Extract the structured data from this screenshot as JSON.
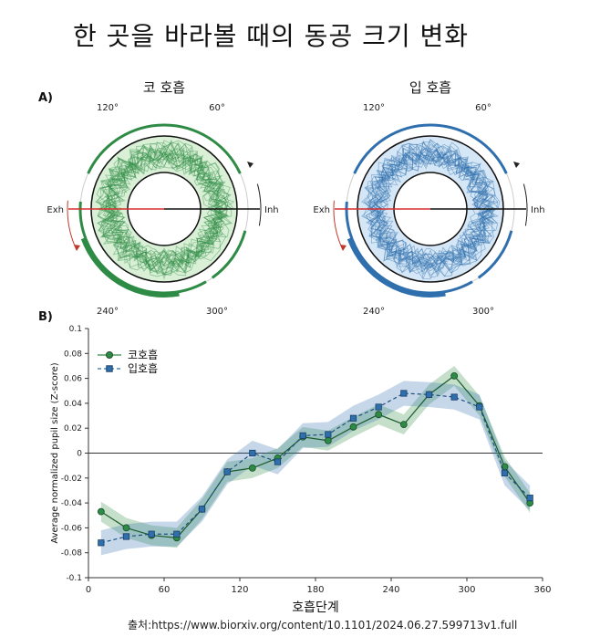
{
  "title": "한 곳을 바라볼 때의 동공 크기 변화",
  "panel_a_label": "A)",
  "panel_b_label": "B)",
  "source": "출처:https://www.biorxiv.org/content/10.1101/2024.06.27.599713v1.full",
  "colors": {
    "nose": "#2e8b45",
    "mouth": "#2f6fae",
    "nose_fill": "#b9e3b5",
    "mouth_fill": "#b3d3ee",
    "exhale_line": "#d62f2f"
  },
  "polar": [
    {
      "name": "코 호흡",
      "angle_labels": [
        "120°",
        "60°",
        "240°",
        "300°"
      ],
      "left_label": "Exh",
      "right_label": "Inh",
      "color_key": "nose"
    },
    {
      "name": "입 호흡",
      "angle_labels": [
        "120°",
        "60°",
        "240°",
        "300°"
      ],
      "left_label": "Exh",
      "right_label": "Inh",
      "color_key": "mouth"
    }
  ],
  "chart_data": {
    "type": "line",
    "xlabel": "호흡단계",
    "ylabel": "Average normalized pupil size (Z-score)",
    "xlim": [
      0,
      360
    ],
    "ylim": [
      -0.1,
      0.1
    ],
    "xticks": [
      0,
      60,
      120,
      180,
      240,
      300,
      360
    ],
    "yticks": [
      -0.1,
      -0.08,
      -0.06,
      -0.04,
      -0.02,
      0,
      0.02,
      0.04,
      0.06,
      0.08,
      0.1
    ],
    "legend_position": "top-left",
    "series": [
      {
        "name": "코호흡",
        "color": "#2e8b45",
        "marker": "circle",
        "linestyle": "solid",
        "x": [
          10,
          30,
          50,
          70,
          90,
          110,
          130,
          150,
          170,
          190,
          210,
          230,
          250,
          270,
          290,
          310,
          330,
          350
        ],
        "y": [
          -0.047,
          -0.06,
          -0.066,
          -0.068,
          -0.045,
          -0.015,
          -0.012,
          -0.004,
          0.013,
          0.01,
          0.021,
          0.031,
          0.023,
          0.047,
          0.062,
          0.038,
          -0.011,
          -0.04
        ]
      },
      {
        "name": "입호흡",
        "color": "#2f6fae",
        "marker": "square",
        "linestyle": "dashed",
        "x": [
          10,
          30,
          50,
          70,
          90,
          110,
          130,
          150,
          170,
          190,
          210,
          230,
          250,
          270,
          290,
          310,
          330,
          350
        ],
        "y": [
          -0.072,
          -0.067,
          -0.065,
          -0.065,
          -0.045,
          -0.015,
          0.0,
          -0.007,
          0.014,
          0.015,
          0.028,
          0.037,
          0.048,
          0.047,
          0.045,
          0.037,
          -0.016,
          -0.036
        ]
      }
    ]
  }
}
